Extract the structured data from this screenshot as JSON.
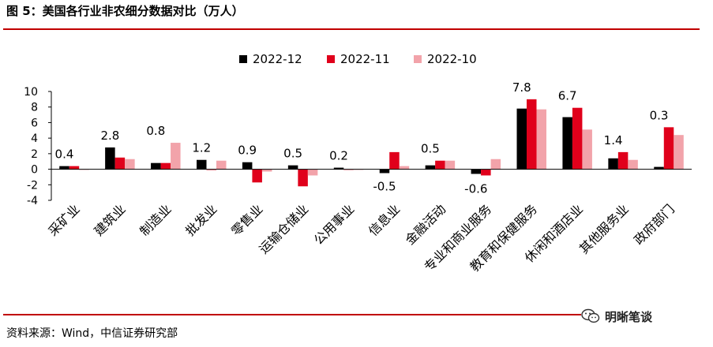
{
  "page": {
    "title": "图 5：美国各行业非农细分数据对比（万人）",
    "source": "资料来源：Wind，中信证券研究部",
    "watermark": "明晰笔谈",
    "watermark_icon": "wechat-icon"
  },
  "chart_data": {
    "type": "bar",
    "title": "",
    "xlabel": "",
    "ylabel": "",
    "ylim": [
      -4,
      10
    ],
    "yticks": [
      -4,
      -2,
      0,
      2,
      4,
      6,
      8,
      10
    ],
    "grid": false,
    "legend_position": "top-center",
    "categories": [
      "采矿业",
      "建筑业",
      "制造业",
      "批发业",
      "零售业",
      "运输仓储业",
      "公用事业",
      "信息业",
      "金融活动",
      "专业和商业服务",
      "教育和保健服务",
      "休闲和酒店业",
      "其他服务业",
      "政府部门"
    ],
    "series": [
      {
        "name": "2022-12",
        "color": "#000000",
        "values": [
          0.4,
          2.8,
          0.8,
          1.2,
          0.9,
          0.5,
          0.2,
          -0.5,
          0.5,
          -0.6,
          7.8,
          6.7,
          1.4,
          0.3
        ]
      },
      {
        "name": "2022-11",
        "color": "#e0001b",
        "values": [
          0.4,
          1.5,
          0.8,
          -0.1,
          -1.7,
          -2.2,
          0.0,
          2.2,
          1.1,
          -0.8,
          9.0,
          7.9,
          2.2,
          5.4
        ]
      },
      {
        "name": "2022-10",
        "color": "#f2a3aa",
        "values": [
          0.0,
          1.3,
          3.4,
          1.1,
          -0.3,
          -0.8,
          0.0,
          0.4,
          1.1,
          1.3,
          7.7,
          5.1,
          1.2,
          4.4
        ]
      }
    ],
    "data_labels": [
      "0.4",
      "2.8",
      "0.8",
      "1.2",
      "0.9",
      "0.5",
      "0.2",
      "-0.5",
      "0.5",
      "-0.6",
      "7.8",
      "6.7",
      "1.4",
      "0.3"
    ]
  }
}
